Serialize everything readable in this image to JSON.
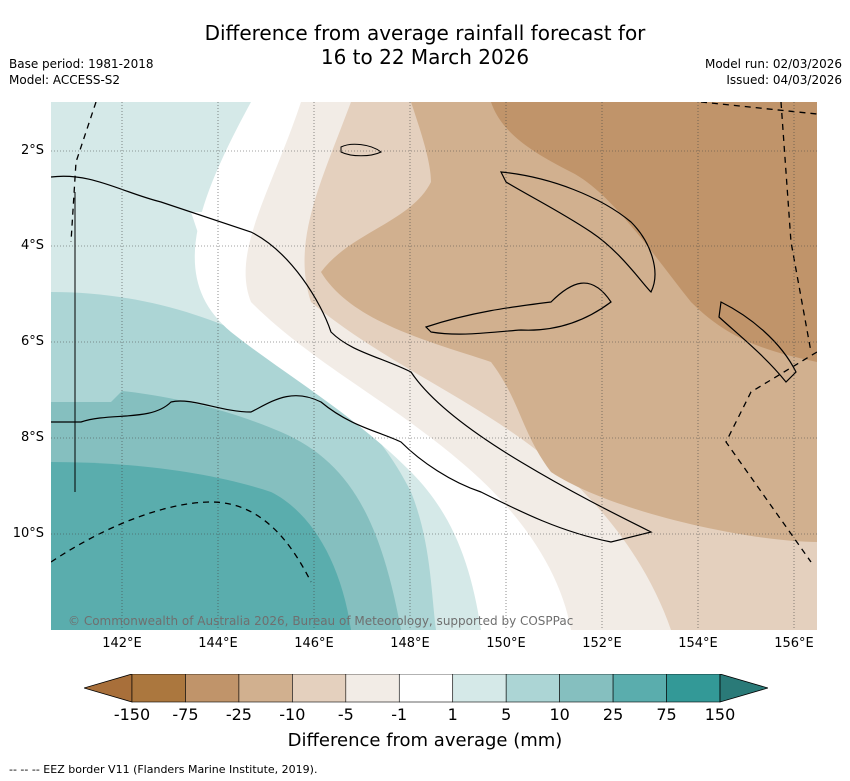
{
  "title_line1": "Difference from average rainfall forecast for",
  "title_line2": "16 to 22 March 2026",
  "base_period": "Base period: 1981-2018",
  "model": "Model: ACCESS-S2",
  "model_run": "Model run: 02/03/2026",
  "issued": "Issued: 04/03/2026",
  "lat_labels": [
    "2°S",
    "4°S",
    "6°S",
    "8°S",
    "10°S"
  ],
  "lon_labels": [
    "142°E",
    "144°E",
    "146°E",
    "148°E",
    "150°E",
    "152°E",
    "154°E",
    "156°E"
  ],
  "colorbar": {
    "title": "Difference from average (mm)",
    "tick_labels": [
      "-150",
      "-75",
      "-25",
      "-10",
      "-5",
      "-1",
      "1",
      "5",
      "10",
      "25",
      "75",
      "150"
    ],
    "colors": [
      "#a86f3a",
      "#ab773e",
      "#c0946a",
      "#d1b08f",
      "#e4d0be",
      "#f2ece6",
      "#ffffff",
      "#d5e9e8",
      "#acd5d5",
      "#85bfbf",
      "#5aadad",
      "#339997",
      "#2a7a78"
    ]
  },
  "copyright": "© Commonwealth of Australia 2026, Bureau of Meteorology, supported by COSPPac",
  "footer": "--  --  -- EEZ border V11 (Flanders Marine Institute, 2019)."
}
